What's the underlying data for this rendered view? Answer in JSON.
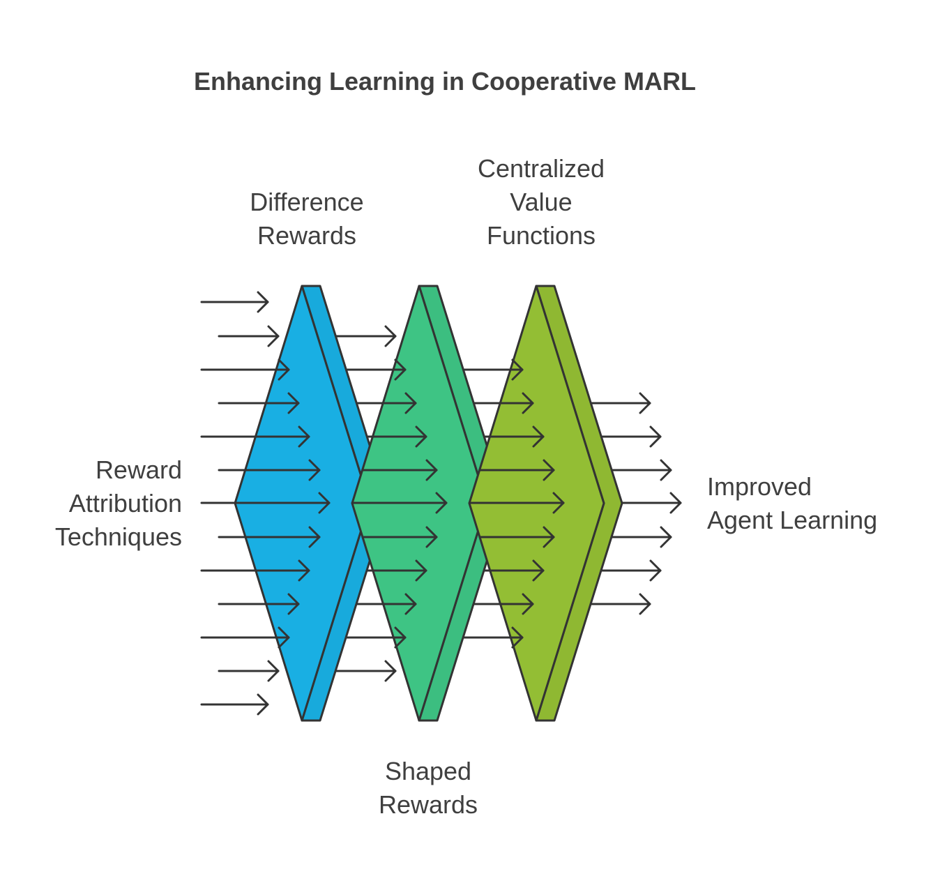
{
  "title": "Enhancing Learning in Cooperative MARL",
  "input_label": [
    "Reward",
    "Attribution",
    "Techniques"
  ],
  "output_label": [
    "Improved",
    "Agent Learning"
  ],
  "stages": [
    {
      "label": [
        "Difference",
        "Rewards"
      ],
      "color": "#19afe3"
    },
    {
      "label": [
        "Shaped",
        "Rewards"
      ],
      "color": "#3ec484"
    },
    {
      "label": [
        "Centralized",
        "Value",
        "Functions"
      ],
      "color": "#93be34"
    }
  ],
  "colors": {
    "text": "#3f3f3f",
    "stroke": "#333333"
  }
}
